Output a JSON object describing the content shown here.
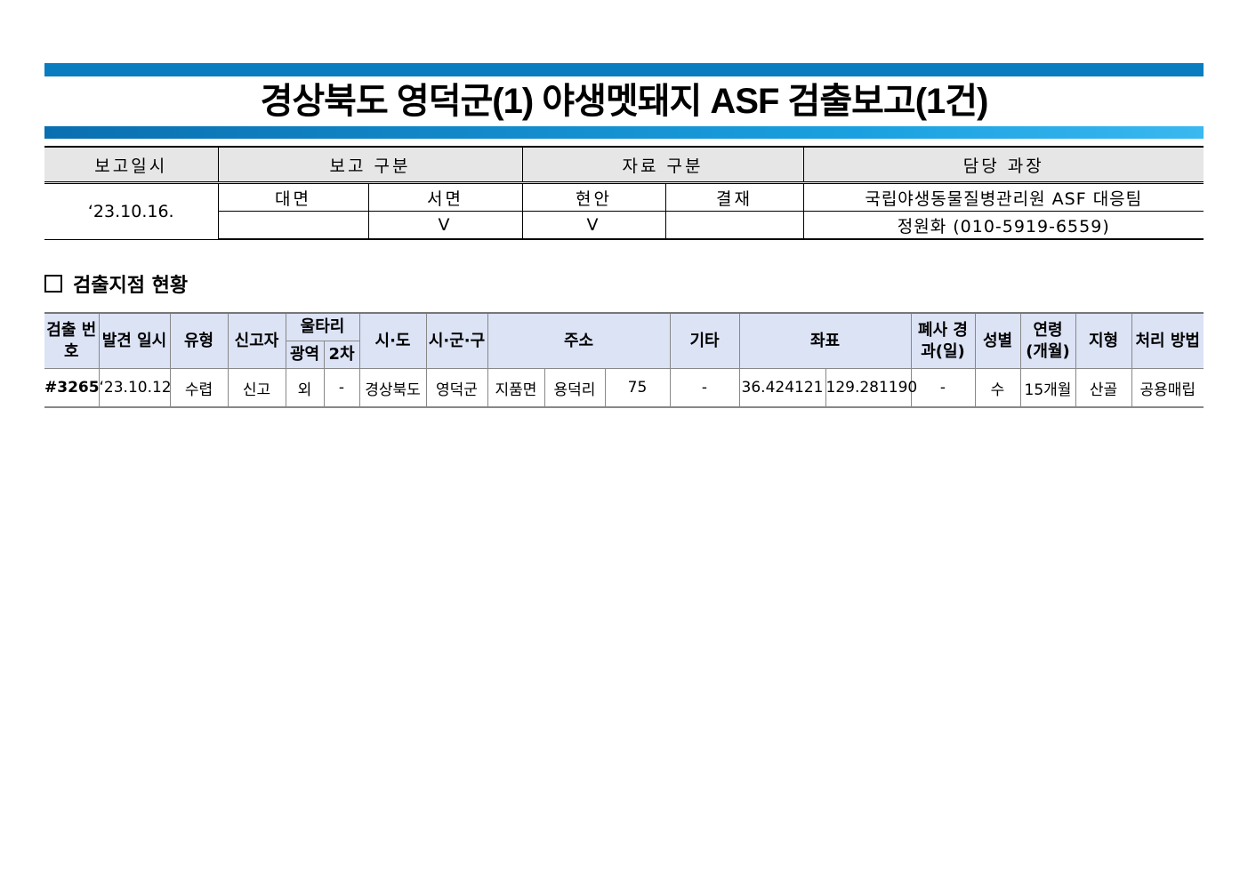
{
  "title": "경상북도 영덕군(1) 야생멧돼지 ASF 검출보고(1건)",
  "report": {
    "headers": [
      "보고일시",
      "보고 구분",
      "자료 구분",
      "담당 과장"
    ],
    "date": "‘23.10.16.",
    "report_types": [
      "대면",
      "서면"
    ],
    "data_types": [
      "현안",
      "결재"
    ],
    "report_marks": [
      "",
      "V"
    ],
    "data_marks": [
      "V",
      ""
    ],
    "department": "국립야생동물질병관리원 ASF 대응팀",
    "contact": "정원화 (010-5919-6559)"
  },
  "section_title": "검출지점 현황",
  "detection": {
    "headers": {
      "no": "검출 번호",
      "date": "발견 일시",
      "type": "유형",
      "reporter": "신고자",
      "fence": "울타리",
      "fence_wide": "광역",
      "fence_2nd": "2차",
      "sido": "시·도",
      "sigungu": "시·군·구",
      "address": "주소",
      "etc": "기타",
      "coords": "좌표",
      "days": "폐사 경과(일)",
      "sex": "성별",
      "age": "연령 (개월)",
      "terrain": "지형",
      "disposal": "처리 방법"
    },
    "rows": [
      {
        "no": "#3265",
        "date": "‘23.10.12",
        "type": "수렵",
        "reporter": "신고",
        "fence_wide": "외",
        "fence_2nd": "-",
        "sido": "경상북도",
        "sigungu": "영덕군",
        "eup": "지품면",
        "ri": "용덕리",
        "bunji": "75",
        "etc": "-",
        "lat": "36.424121",
        "lon": "129.281190",
        "days": "-",
        "sex": "수",
        "age": "15개월",
        "terrain": "산골",
        "disposal": "공용매립"
      }
    ]
  }
}
